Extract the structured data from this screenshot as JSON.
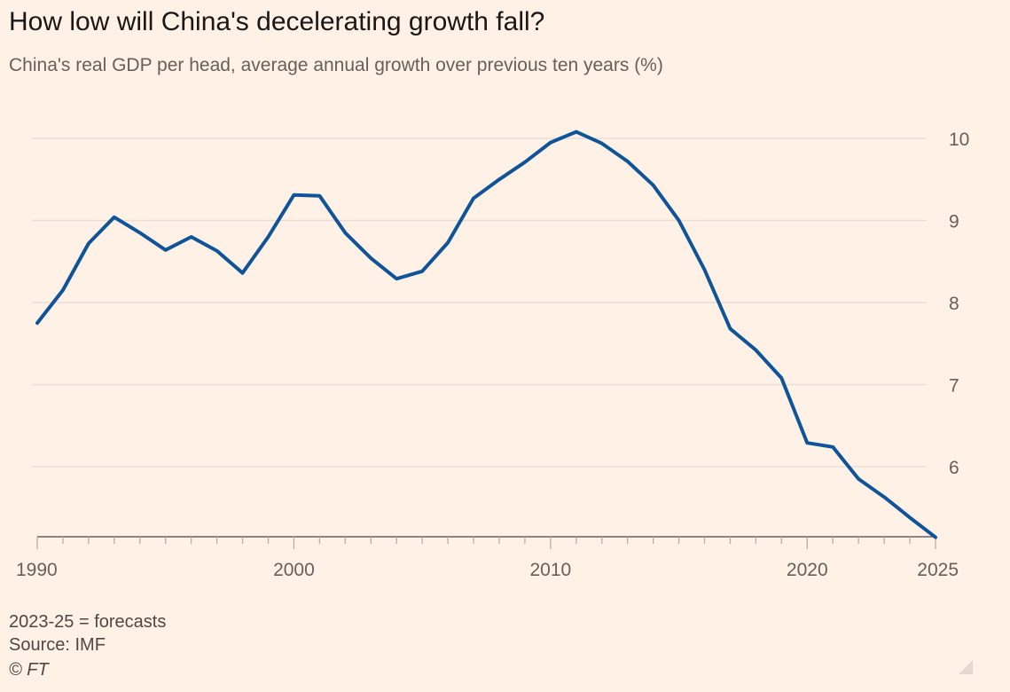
{
  "title": "How low will China's decelerating growth fall?",
  "subtitle": "China's real GDP per head, average annual growth over previous ten years (%)",
  "notes": {
    "forecast": "2023-25 = forecasts",
    "source": "Source: IMF",
    "copyright": "© FT"
  },
  "colors": {
    "background": "#FFF1E5",
    "line": "#0F5499",
    "grid": "#E9DED5",
    "axis": "#66605C"
  },
  "icons": {
    "resize": "resize-corner-icon"
  },
  "chart_data": {
    "type": "line",
    "title": "How low will China's decelerating growth fall?",
    "subtitle": "China's real GDP per head, average annual growth over previous ten years (%)",
    "xlabel": "",
    "ylabel": "",
    "x": [
      1990,
      1991,
      1992,
      1993,
      1994,
      1995,
      1996,
      1997,
      1998,
      1999,
      2000,
      2001,
      2002,
      2003,
      2004,
      2005,
      2006,
      2007,
      2008,
      2009,
      2010,
      2011,
      2012,
      2013,
      2014,
      2015,
      2016,
      2017,
      2018,
      2019,
      2020,
      2021,
      2022,
      2023,
      2024,
      2025
    ],
    "series": [
      {
        "values": [
          7.75,
          8.15,
          8.72,
          9.04,
          8.85,
          8.64,
          8.8,
          8.63,
          8.36,
          8.8,
          9.31,
          9.3,
          8.85,
          8.54,
          8.29,
          8.38,
          8.73,
          9.27,
          9.5,
          9.71,
          9.95,
          10.08,
          9.94,
          9.72,
          9.43,
          9.0,
          8.4,
          7.68,
          7.42,
          7.08,
          6.29,
          6.24,
          5.85,
          5.63,
          5.38,
          5.14
        ]
      }
    ],
    "x_ticks": [
      1990,
      2000,
      2010,
      2020,
      2025
    ],
    "y_ticks": [
      6,
      7,
      8,
      9,
      10
    ],
    "xlim": [
      1990,
      2025
    ],
    "ylim": [
      5.14,
      10.13
    ],
    "y_axis_position": "right",
    "grid": true,
    "legend": "none"
  }
}
